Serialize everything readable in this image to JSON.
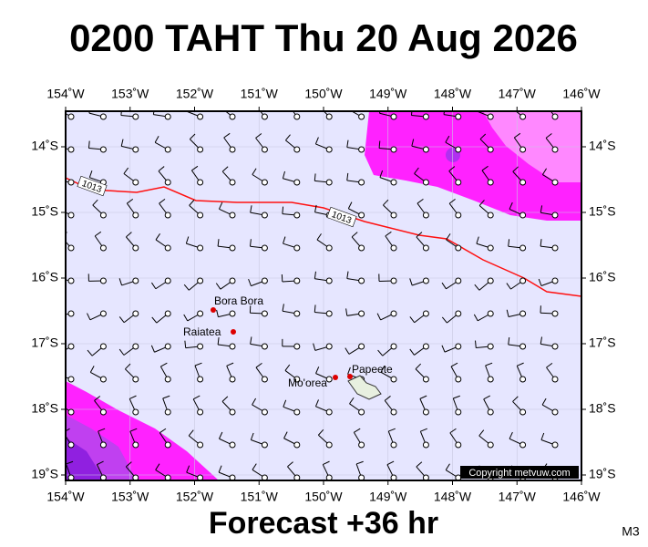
{
  "header": {
    "title": "0200 TAHT Thu 20 Aug 2026"
  },
  "footer": {
    "forecast": "Forecast +36 hr",
    "model": "M3"
  },
  "map": {
    "lon_labels": [
      "154˚W",
      "153˚W",
      "152˚W",
      "151˚W",
      "150˚W",
      "149˚W",
      "148˚W",
      "147˚W",
      "146˚W"
    ],
    "lat_labels": [
      "14˚S",
      "15˚S",
      "16˚S",
      "17˚S",
      "18˚S",
      "19˚S"
    ],
    "isobar_label": "1013",
    "places": [
      "Bora Bora",
      "Raiatea",
      "Mo'orea",
      "Papeete"
    ],
    "copyright": "Copyright metvuw.com"
  }
}
